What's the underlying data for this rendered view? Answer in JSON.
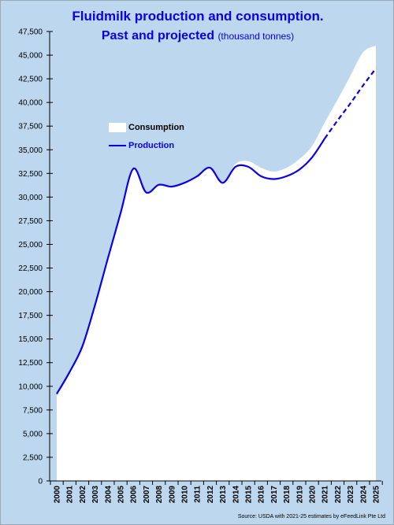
{
  "chart_data": {
    "type": "area",
    "title": "Fluidmilk production and consumption.",
    "subtitle": "Past and projected",
    "unit": "(thousand tonnes)",
    "x": [
      "2000",
      "2001",
      "2002",
      "2003",
      "2004",
      "2005",
      "2006",
      "2007",
      "2008",
      "2009",
      "2010",
      "2011",
      "2012",
      "2013",
      "2014",
      "2015",
      "2016",
      "2017",
      "2018",
      "2019",
      "2020",
      "2021",
      "2022",
      "2023",
      "2024",
      "2025"
    ],
    "series": [
      {
        "name": "Consumption",
        "style": "white-area",
        "values": [
          9000,
          11300,
          14200,
          18800,
          23800,
          28500,
          33000,
          30600,
          31200,
          31100,
          31500,
          32200,
          33100,
          31500,
          33500,
          33800,
          33100,
          32700,
          33100,
          34000,
          35400,
          37900,
          40300,
          42800,
          45300,
          46000
        ]
      },
      {
        "name": "Production",
        "style": "line",
        "values": [
          9200,
          11500,
          14200,
          18600,
          23500,
          28300,
          33000,
          30500,
          31300,
          31100,
          31500,
          32200,
          33100,
          31500,
          33200,
          33200,
          32200,
          31900,
          32200,
          32900,
          34200,
          36200,
          38100,
          39900,
          41800,
          43600
        ],
        "projected_from": "2021"
      }
    ],
    "ylim": [
      0,
      47500
    ],
    "yticks": [
      "0",
      "2,500",
      "5,000",
      "7,500",
      "10,000",
      "12,500",
      "15,000",
      "17,500",
      "20,000",
      "22,500",
      "25,000",
      "27,500",
      "30,000",
      "32,500",
      "35,000",
      "37,500",
      "40,000",
      "42,500",
      "45,000",
      "47,500"
    ],
    "legend": "upper-left",
    "grid": false,
    "colors": {
      "background": "#bdd7ee",
      "area": "#ffffff",
      "line": "#0b00e6",
      "title": "#0b00e6"
    },
    "source": "Source: USDA with 2021-25 estimates by eFeedLink Pte Ltd"
  }
}
